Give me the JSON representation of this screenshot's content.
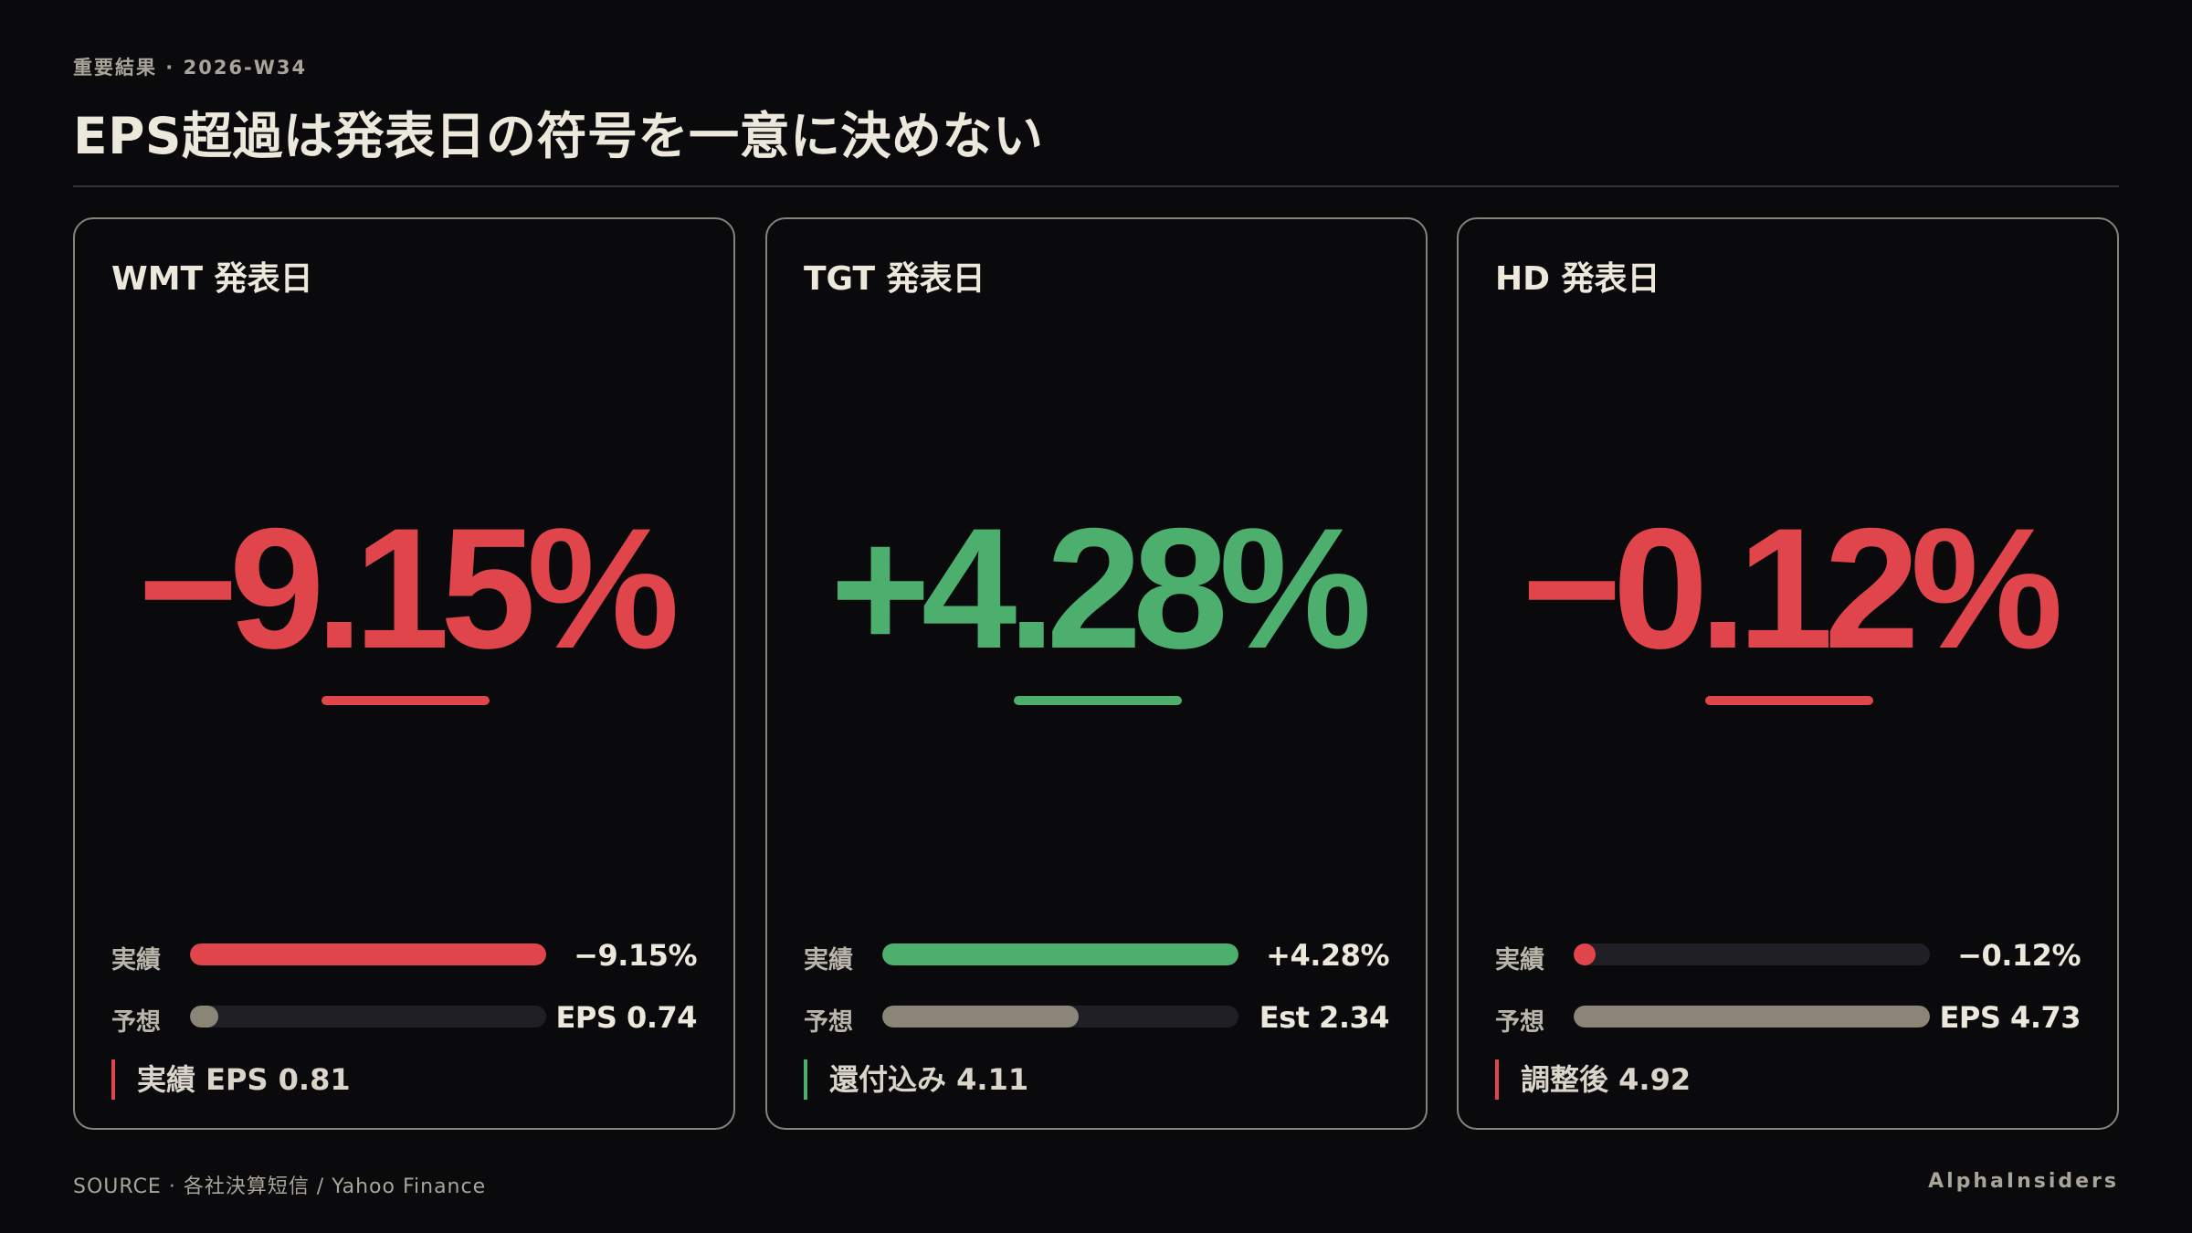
{
  "header": {
    "eyebrow": "重要結果 · 2026-W34",
    "title": "EPS超過は発表日の符号を一意に決めない"
  },
  "colors": {
    "negative": "#e0454b",
    "positive": "#4caf6e",
    "estimate": "#8a8577",
    "track": "#1f1f25"
  },
  "cards": [
    {
      "title": "WMT 発表日",
      "value": "−9.15%",
      "sign": "negative",
      "rows": [
        {
          "label": "実績",
          "value": "−9.15%",
          "fill_fraction": 1.0,
          "tone": "negative"
        },
        {
          "label": "予想",
          "value": "EPS 0.74",
          "fill_fraction": 0.08,
          "tone": "estimate"
        }
      ],
      "note": "実績 EPS 0.81"
    },
    {
      "title": "TGT 発表日",
      "value": "+4.28%",
      "sign": "positive",
      "rows": [
        {
          "label": "実績",
          "value": "+4.28%",
          "fill_fraction": 1.0,
          "tone": "positive"
        },
        {
          "label": "予想",
          "value": "Est 2.34",
          "fill_fraction": 0.55,
          "tone": "estimate"
        }
      ],
      "note": "還付込み 4.11"
    },
    {
      "title": "HD 発表日",
      "value": "−0.12%",
      "sign": "negative",
      "rows": [
        {
          "label": "実績",
          "value": "−0.12%",
          "fill_fraction": 0.04,
          "tone": "negative"
        },
        {
          "label": "予想",
          "value": "EPS 4.73",
          "fill_fraction": 1.0,
          "tone": "estimate"
        }
      ],
      "note": "調整後 4.92"
    }
  ],
  "footer": {
    "source": "SOURCE · 各社決算短信 / Yahoo Finance",
    "brand": "AlphaInsiders"
  }
}
